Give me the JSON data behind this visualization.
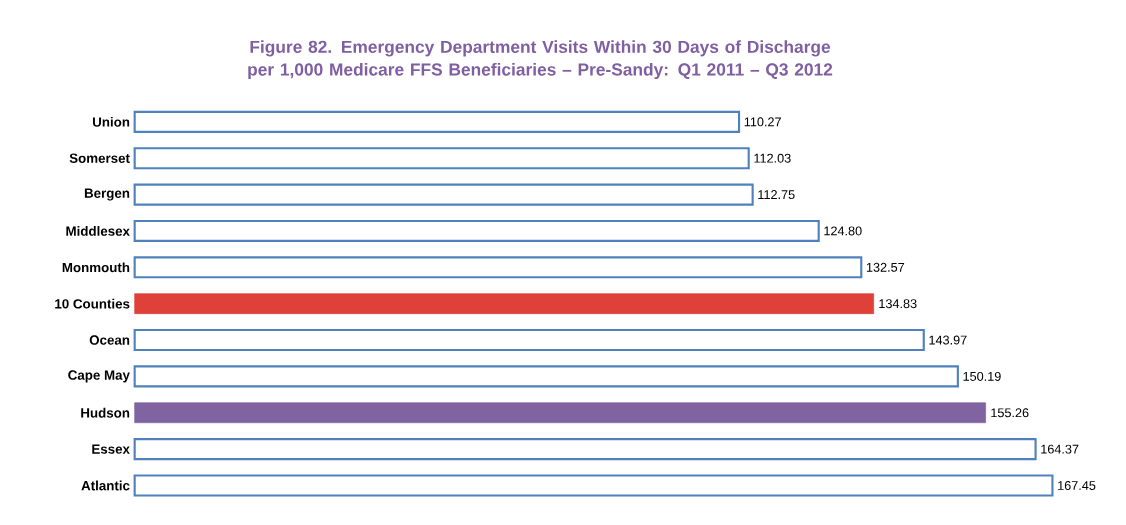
{
  "chart_data": {
    "type": "bar",
    "orientation": "horizontal",
    "title": "Figure 82. Emergency Department Visits Within 30 Days of Discharge per 1,000 Medicare FFS Beneficiaries – Pre-Sandy: Q1 2011 – Q3 2012",
    "categories": [
      "Union",
      "Somerset",
      "Bergen",
      "Middlesex",
      "Monmouth",
      "10 Counties",
      "Ocean",
      "Cape May",
      "Hudson",
      "Essex",
      "Atlantic"
    ],
    "values": [
      110.27,
      112.03,
      112.75,
      124.8,
      132.57,
      134.83,
      143.97,
      150.19,
      155.26,
      164.37,
      167.45
    ],
    "value_labels": [
      "110.27",
      "112.03",
      "112.75",
      "124.80",
      "132.57",
      "134.83",
      "143.97",
      "150.19",
      "155.26",
      "164.37",
      "167.45"
    ],
    "colors": [
      "#4f81bd",
      "#4f81bd",
      "#4f81bd",
      "#4f81bd",
      "#4f81bd",
      "#e0403a",
      "#4f81bd",
      "#4f81bd",
      "#8064a2",
      "#4f81bd",
      "#4f81bd"
    ]
  }
}
